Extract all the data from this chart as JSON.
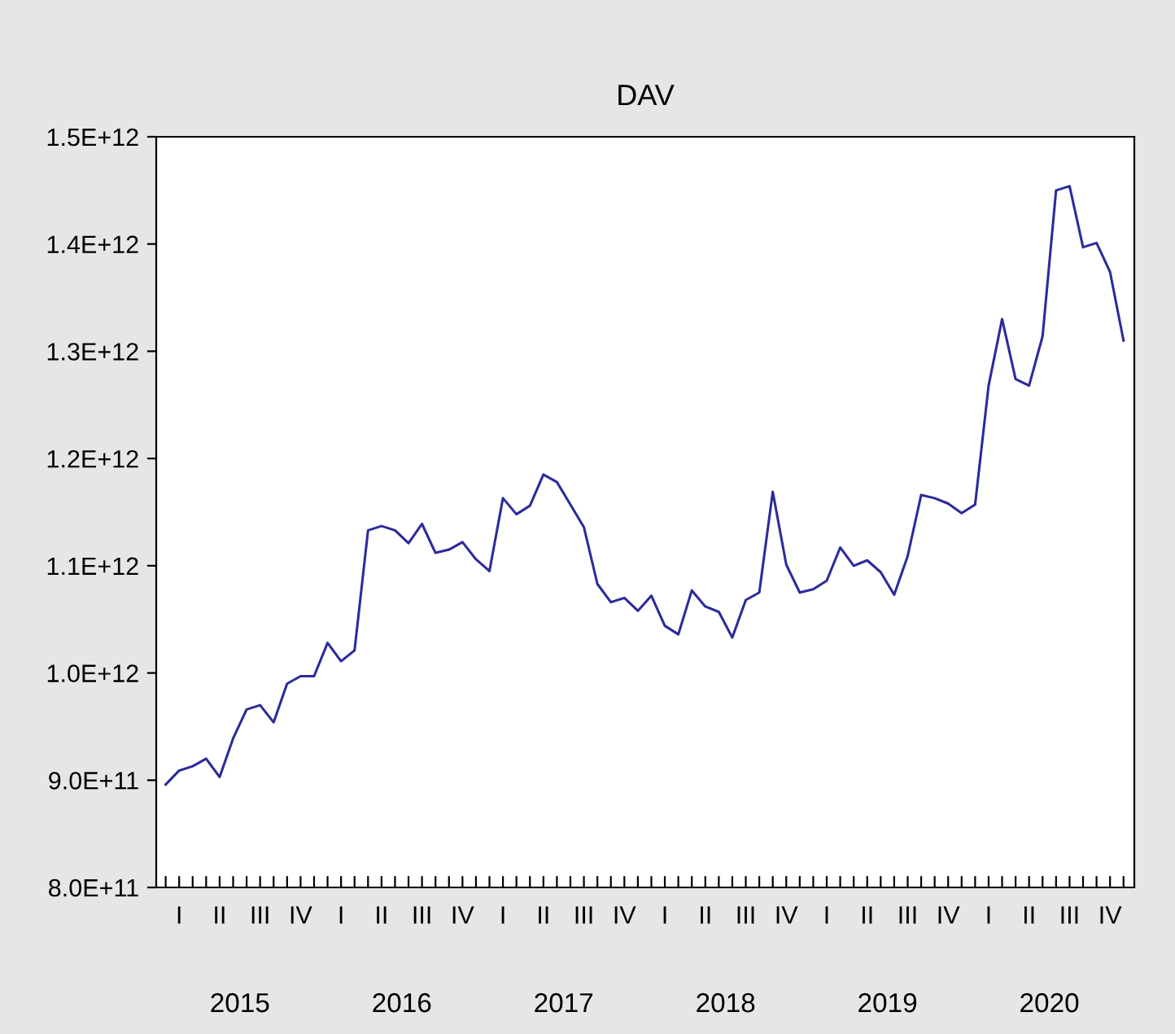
{
  "chart_data": {
    "type": "line",
    "title": "DAV",
    "categories": [
      null,
      "I",
      null,
      null,
      "II",
      null,
      null,
      "III",
      null,
      null,
      "IV",
      null,
      null,
      "I",
      null,
      null,
      "II",
      null,
      null,
      "III",
      null,
      null,
      "IV",
      null,
      null,
      "I",
      null,
      null,
      "II",
      null,
      null,
      "III",
      null,
      null,
      "IV",
      null,
      null,
      "I",
      null,
      null,
      "II",
      null,
      null,
      "III",
      null,
      null,
      "IV",
      null,
      null,
      "I",
      null,
      null,
      "II",
      null,
      null,
      "III",
      null,
      null,
      "IV",
      null,
      null,
      "I",
      null,
      null,
      "II",
      null,
      null,
      "III",
      null,
      null,
      "IV",
      null
    ],
    "series": [
      {
        "color": "#2b2b9c",
        "values": [
          896000000000.0,
          909000000000.0,
          913000000000.0,
          920000000000.0,
          903000000000.0,
          939000000000.0,
          966000000000.0,
          970000000000.0,
          954000000000.0,
          990000000000.0,
          997000000000.0,
          997000000000.0,
          1028000000000.0,
          1011000000000.0,
          1021000000000.0,
          1133000000000.0,
          1137000000000.0,
          1133000000000.0,
          1121000000000.0,
          1139000000000.0,
          1112000000000.0,
          1115000000000.0,
          1122000000000.0,
          1106000000000.0,
          1095000000000.0,
          1163000000000.0,
          1148000000000.0,
          1156000000000.0,
          1185000000000.0,
          1178000000000.0,
          1157000000000.0,
          1136000000000.0,
          1083000000000.0,
          1066000000000.0,
          1070000000000.0,
          1058000000000.0,
          1072000000000.0,
          1044000000000.0,
          1036000000000.0,
          1077000000000.0,
          1062000000000.0,
          1057000000000.0,
          1033000000000.0,
          1068000000000.0,
          1075000000000.0,
          1169000000000.0,
          1101000000000.0,
          1075000000000.0,
          1078000000000.0,
          1086000000000.0,
          1117000000000.0,
          1100000000000.0,
          1105000000000.0,
          1094000000000.0,
          1073000000000.0,
          1109000000000.0,
          1166000000000.0,
          1163000000000.0,
          1158000000000.0,
          1149000000000.0,
          1157000000000.0,
          1268000000000.0,
          1330000000000.0,
          1274000000000.0,
          1268000000000.0,
          1314000000000.0,
          1450000000000.0,
          1454000000000.0,
          1397000000000.0,
          1401000000000.0,
          1374000000000.0,
          1310000000000.0
        ]
      }
    ],
    "ylim": [
      800000000000.0,
      1500000000000.0
    ],
    "yticks": [
      {
        "value": 800000000000.0,
        "label": "8.0E+11"
      },
      {
        "value": 900000000000.0,
        "label": "9.0E+11"
      },
      {
        "value": 1000000000000.0,
        "label": "1.0E+12"
      },
      {
        "value": 1100000000000.0,
        "label": "1.1E+12"
      },
      {
        "value": 1200000000000.0,
        "label": "1.2E+12"
      },
      {
        "value": 1300000000000.0,
        "label": "1.3E+12"
      },
      {
        "value": 1400000000000.0,
        "label": "1.4E+12"
      },
      {
        "value": 1500000000000.0,
        "label": "1.5E+12"
      }
    ],
    "annotations": [
      "2015",
      "2016",
      "2017",
      "2018",
      "2019",
      "2020"
    ],
    "grid": false,
    "legend": false
  }
}
